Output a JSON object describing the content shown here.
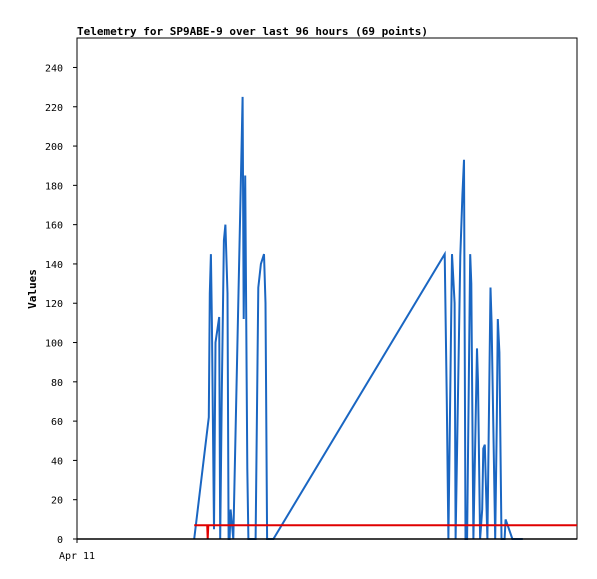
{
  "chart_data": {
    "type": "line",
    "title": "Telemetry for SP9ABE-9 over last 96 hours (69 points)",
    "xlabel": "",
    "ylabel": "Values",
    "x_tick_labels": [
      "Apr 11"
    ],
    "xlim": [
      0,
      96
    ],
    "ylim": [
      0,
      255
    ],
    "yticks": [
      0,
      20,
      40,
      60,
      80,
      100,
      120,
      140,
      160,
      180,
      200,
      220,
      240
    ],
    "grid": false,
    "series": [
      {
        "name": "",
        "color": "#1a66c2",
        "x": [
          22.5,
          25.3,
          25.5,
          25.7,
          25.9,
          26.3,
          26.6,
          27.3,
          27.5,
          27.8,
          28.2,
          28.5,
          28.9,
          29.1,
          29.3,
          29.5,
          30.0,
          31.5,
          31.8,
          32.0,
          32.3,
          32.7,
          32.9,
          34.3,
          34.8,
          35.3,
          35.9,
          36.2,
          36.5,
          36.8,
          37.7,
          70.6,
          71.0,
          71.3,
          72.0,
          72.5,
          72.7,
          73.6,
          74.0,
          74.3,
          74.6,
          74.9,
          75.5,
          75.7,
          75.8,
          76.1,
          76.8,
          77.0,
          77.4,
          77.8,
          78.0,
          78.3,
          78.8,
          79.4,
          79.6,
          80.3,
          80.6,
          80.8,
          81.1,
          81.5,
          82.1,
          82.3,
          83.6,
          84.0,
          84.2,
          84.5,
          85.0,
          85.3,
          85.6
        ],
        "y": [
          0,
          62,
          125,
          145,
          110,
          5,
          100,
          113,
          0,
          75,
          152,
          160,
          125,
          0,
          0,
          15,
          0,
          188,
          225,
          112,
          185,
          36,
          0,
          0,
          128,
          140,
          145,
          120,
          0,
          0,
          0,
          145,
          70,
          0,
          145,
          120,
          0,
          144,
          175,
          193,
          0,
          0,
          145,
          130,
          98,
          0,
          97,
          80,
          0,
          15,
          46,
          48,
          0,
          128,
          110,
          0,
          60,
          112,
          95,
          0,
          0,
          10,
          0,
          0,
          0,
          0,
          0,
          0,
          0
        ]
      },
      {
        "name": "",
        "color": "#e00000",
        "x": [
          22.5,
          25.0,
          25.1,
          25.2,
          96
        ],
        "y": [
          7,
          7,
          0,
          7,
          7
        ]
      },
      {
        "name": "",
        "color": "#000000",
        "x": [
          0,
          96
        ],
        "y": [
          0,
          0
        ]
      }
    ]
  }
}
